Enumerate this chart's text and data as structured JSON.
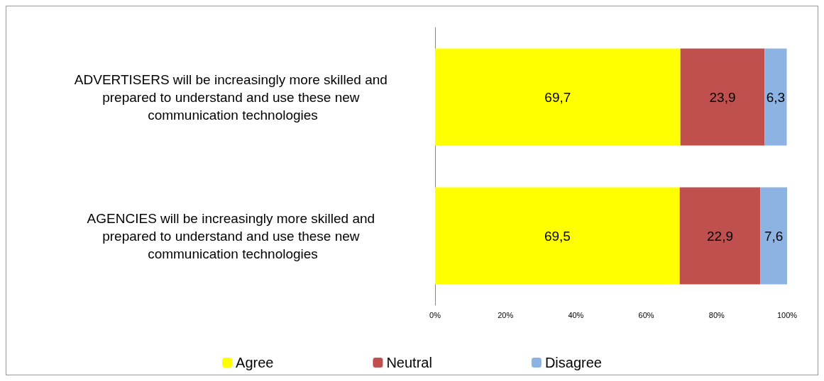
{
  "chart_data": {
    "type": "bar",
    "orientation": "horizontal",
    "stacked": true,
    "categories": [
      "ADVERTISERS will be increasingly more skilled and prepared to understand and use these new communication technologies",
      "AGENCIES will be increasingly more skilled and prepared to understand and use these new communication technologies"
    ],
    "series": [
      {
        "name": "Agree",
        "color": "#ffff00",
        "values": [
          69.7,
          69.5
        ],
        "value_labels": [
          "69,7",
          "69,5"
        ]
      },
      {
        "name": "Neutral",
        "color": "#c0504d",
        "values": [
          23.9,
          22.9
        ],
        "value_labels": [
          "23,9",
          "22,9"
        ]
      },
      {
        "name": "Disagree",
        "color": "#8db3e2",
        "values": [
          6.3,
          7.6
        ],
        "value_labels": [
          "6,3",
          "7,6"
        ]
      }
    ],
    "xlim": [
      0,
      100
    ],
    "xticks": [
      {
        "value": 0,
        "label": "0%"
      },
      {
        "value": 20,
        "label": "20%"
      },
      {
        "value": 40,
        "label": "40%"
      },
      {
        "value": 60,
        "label": "60%"
      },
      {
        "value": 80,
        "label": "80%"
      },
      {
        "value": 100,
        "label": "100%"
      }
    ],
    "grid": false,
    "legend": "bottom"
  }
}
